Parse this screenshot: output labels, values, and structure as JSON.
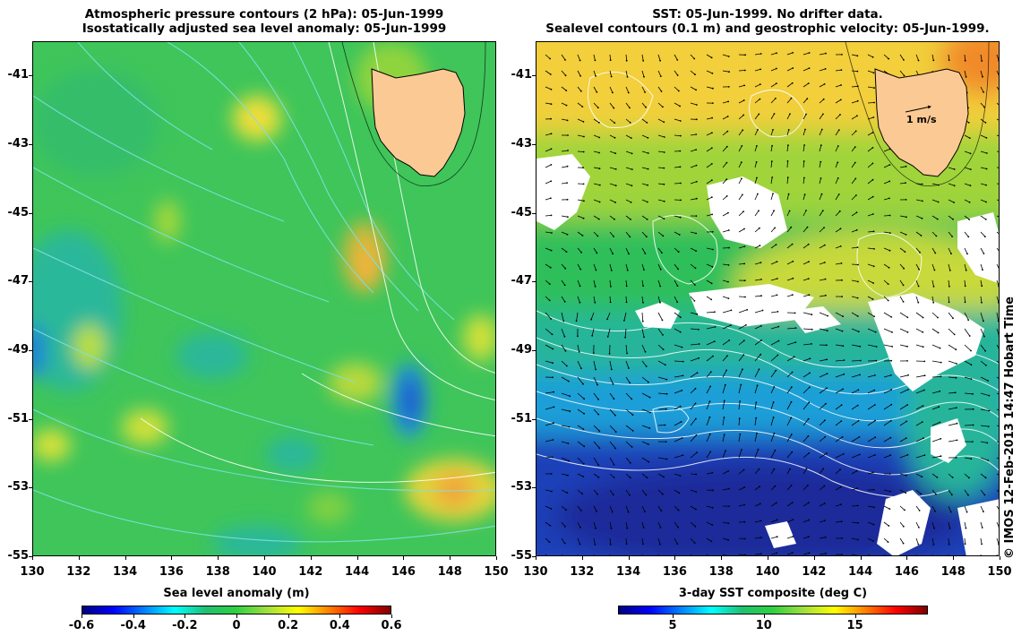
{
  "left_panel": {
    "title_line1": "Atmospheric pressure contours (2 hPa): 05-Jun-1999",
    "title_line2": "Isostatically adjusted sea level anomaly: 05-Jun-1999",
    "colorbar_title": "Sea level anomaly (m)",
    "colorbar_ticks": [
      "-0.6",
      "-0.4",
      "-0.2",
      "0",
      "0.2",
      "0.4",
      "0.6"
    ],
    "colorbar_values": [
      -0.6,
      -0.4,
      -0.2,
      0,
      0.2,
      0.4,
      0.6
    ]
  },
  "right_panel": {
    "title_line1": "SST: 05-Jun-1999. No drifter data.",
    "title_line2": "Sealevel contours (0.1 m) and geostrophic velocity: 05-Jun-1999.",
    "colorbar_title": "3-day SST composite (deg C)",
    "colorbar_ticks": [
      "5",
      "10",
      "15"
    ],
    "colorbar_range": [
      2,
      19
    ],
    "velocity_scale_label": "1 m/s"
  },
  "axes": {
    "lat_ticks": [
      "-41",
      "-43",
      "-45",
      "-47",
      "-49",
      "-51",
      "-53",
      "-55"
    ],
    "lat_values": [
      -41,
      -43,
      -45,
      -47,
      -49,
      -51,
      -53,
      -55
    ],
    "lon_ticks": [
      "130",
      "132",
      "134",
      "136",
      "138",
      "140",
      "142",
      "144",
      "146",
      "148",
      "150"
    ],
    "lon_values": [
      130,
      132,
      134,
      136,
      138,
      140,
      142,
      144,
      146,
      148,
      150
    ],
    "lat_range": [
      -55,
      -40
    ],
    "lon_range": [
      130,
      150
    ]
  },
  "credit": "© IMOS 12-Feb-2013 14:47 Hobart Time",
  "colors": {
    "land": "#fbc993",
    "pressure_contour": "#7fe0e0",
    "sea_level_contour": "#ffffff",
    "velocity_arrow": "#000000"
  }
}
